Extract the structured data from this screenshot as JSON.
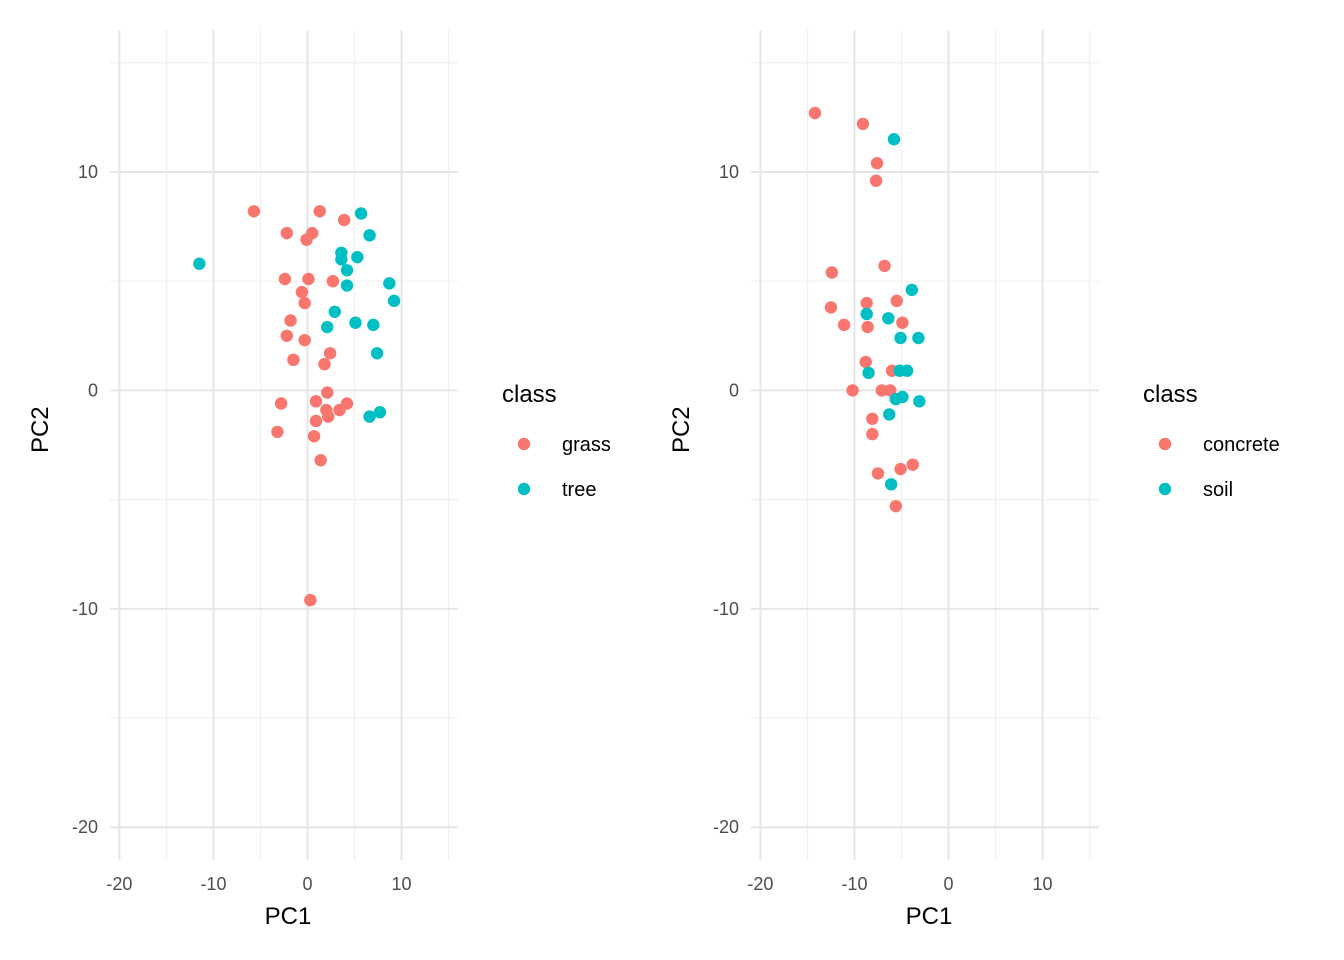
{
  "colors": {
    "series_a": "#F8766D",
    "series_b": "#00BFC4"
  },
  "chart_data": [
    {
      "type": "scatter",
      "xlabel": "PC1",
      "ylabel": "PC2",
      "xlim": [
        -21,
        16
      ],
      "ylim": [
        -21.5,
        16.5
      ],
      "xticks": [
        -20,
        -10,
        0,
        10
      ],
      "yticks": [
        -20,
        -10,
        0,
        10
      ],
      "grid": true,
      "legend": {
        "title": "class",
        "placement": "right"
      },
      "series": [
        {
          "name": "grass",
          "color": "#F8766D",
          "points": [
            [
              -5.7,
              8.2
            ],
            [
              1.3,
              8.2
            ],
            [
              3.9,
              7.8
            ],
            [
              -2.2,
              7.2
            ],
            [
              0.5,
              7.2
            ],
            [
              -0.1,
              6.9
            ],
            [
              -2.4,
              5.1
            ],
            [
              0.1,
              5.1
            ],
            [
              2.7,
              5.0
            ],
            [
              -0.6,
              4.5
            ],
            [
              -0.3,
              4.0
            ],
            [
              -1.8,
              3.2
            ],
            [
              -2.2,
              2.5
            ],
            [
              -0.3,
              2.3
            ],
            [
              2.4,
              1.7
            ],
            [
              -1.5,
              1.4
            ],
            [
              1.8,
              1.2
            ],
            [
              2.1,
              -0.1
            ],
            [
              0.9,
              -0.5
            ],
            [
              4.2,
              -0.6
            ],
            [
              -2.8,
              -0.6
            ],
            [
              2.0,
              -0.9
            ],
            [
              3.4,
              -0.9
            ],
            [
              2.2,
              -1.2
            ],
            [
              0.9,
              -1.4
            ],
            [
              -3.2,
              -1.9
            ],
            [
              0.7,
              -2.1
            ],
            [
              1.4,
              -3.2
            ],
            [
              0.3,
              -9.6
            ]
          ]
        },
        {
          "name": "tree",
          "color": "#00BFC4",
          "points": [
            [
              -11.5,
              5.8
            ],
            [
              5.7,
              8.1
            ],
            [
              6.6,
              7.1
            ],
            [
              3.6,
              6.3
            ],
            [
              3.6,
              6.0
            ],
            [
              5.3,
              6.1
            ],
            [
              4.2,
              5.5
            ],
            [
              8.7,
              4.9
            ],
            [
              4.2,
              4.8
            ],
            [
              9.2,
              4.1
            ],
            [
              2.9,
              3.6
            ],
            [
              5.1,
              3.1
            ],
            [
              7.0,
              3.0
            ],
            [
              2.1,
              2.9
            ],
            [
              7.4,
              1.7
            ],
            [
              7.7,
              -1.0
            ],
            [
              6.6,
              -1.2
            ]
          ]
        }
      ]
    },
    {
      "type": "scatter",
      "xlabel": "PC1",
      "ylabel": "PC2",
      "xlim": [
        -21,
        16
      ],
      "ylim": [
        -21.5,
        16.5
      ],
      "xticks": [
        -20,
        -10,
        0,
        10
      ],
      "yticks": [
        -20,
        -10,
        0,
        10
      ],
      "grid": true,
      "legend": {
        "title": "class",
        "placement": "right"
      },
      "series": [
        {
          "name": "concrete",
          "color": "#F8766D",
          "points": [
            [
              -14.2,
              12.7
            ],
            [
              -9.1,
              12.2
            ],
            [
              -7.6,
              10.4
            ],
            [
              -7.7,
              9.6
            ],
            [
              -12.4,
              5.4
            ],
            [
              -6.8,
              5.7
            ],
            [
              -12.5,
              3.8
            ],
            [
              -8.7,
              4.0
            ],
            [
              -5.5,
              4.1
            ],
            [
              -11.1,
              3.0
            ],
            [
              -8.6,
              2.9
            ],
            [
              -4.9,
              3.1
            ],
            [
              -8.8,
              1.3
            ],
            [
              -6.0,
              0.9
            ],
            [
              -10.2,
              0.0
            ],
            [
              -7.1,
              0.0
            ],
            [
              -6.2,
              0.0
            ],
            [
              -8.1,
              -1.3
            ],
            [
              -8.1,
              -2.0
            ],
            [
              -7.5,
              -3.8
            ],
            [
              -5.1,
              -3.6
            ],
            [
              -3.8,
              -3.4
            ],
            [
              -5.6,
              -5.3
            ]
          ]
        },
        {
          "name": "soil",
          "color": "#00BFC4",
          "points": [
            [
              -5.8,
              11.5
            ],
            [
              -3.9,
              4.6
            ],
            [
              -8.7,
              3.5
            ],
            [
              -6.4,
              3.3
            ],
            [
              -5.1,
              2.4
            ],
            [
              -3.2,
              2.4
            ],
            [
              -8.5,
              0.8
            ],
            [
              -5.2,
              0.9
            ],
            [
              -4.4,
              0.9
            ],
            [
              -5.6,
              -0.4
            ],
            [
              -4.9,
              -0.3
            ],
            [
              -3.1,
              -0.5
            ],
            [
              -6.3,
              -1.1
            ],
            [
              -6.1,
              -4.3
            ]
          ]
        }
      ]
    }
  ]
}
